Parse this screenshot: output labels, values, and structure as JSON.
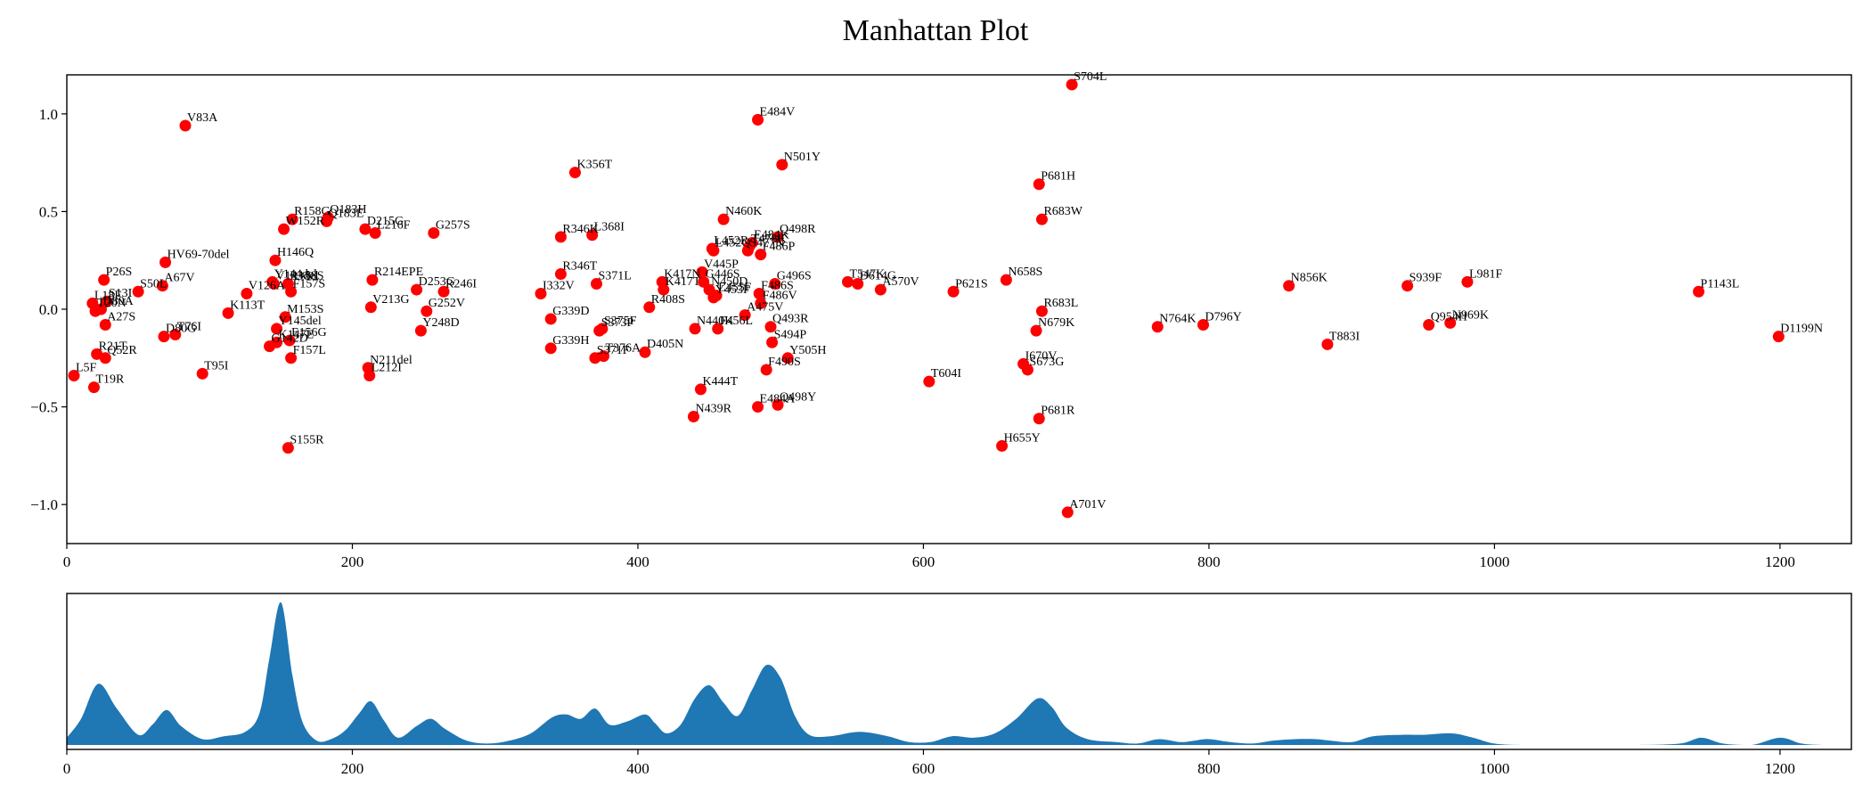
{
  "chart_data": [
    {
      "type": "scatter",
      "title": "Manhattan Plot",
      "xlabel": "",
      "ylabel": "",
      "xlim": [
        0,
        1250
      ],
      "ylim": [
        -1.2,
        1.2
      ],
      "xticks": [
        0,
        200,
        400,
        600,
        800,
        1000,
        1200
      ],
      "yticks": [
        -1.0,
        -0.5,
        0.0,
        0.5,
        1.0
      ],
      "grid": false,
      "color": "#ff0000",
      "points": [
        {
          "label": "L5F",
          "x": 5,
          "y": -0.34
        },
        {
          "label": "L18F",
          "x": 18,
          "y": 0.03
        },
        {
          "label": "T19R",
          "x": 19,
          "y": -0.4
        },
        {
          "label": "T20N",
          "x": 20,
          "y": -0.01
        },
        {
          "label": "P26S",
          "x": 26,
          "y": 0.15
        },
        {
          "label": "R21T",
          "x": 21,
          "y": -0.23
        },
        {
          "label": "D80A",
          "x": 24,
          "y": 0.0
        },
        {
          "label": "A27S",
          "x": 27,
          "y": -0.08
        },
        {
          "label": "S13I",
          "x": 28,
          "y": 0.04
        },
        {
          "label": "Q52R",
          "x": 27,
          "y": -0.25
        },
        {
          "label": "HV69-70del",
          "x": 69,
          "y": 0.24
        },
        {
          "label": "S50L",
          "x": 50,
          "y": 0.09
        },
        {
          "label": "A67V",
          "x": 67,
          "y": 0.12
        },
        {
          "label": "D80G",
          "x": 68,
          "y": -0.14
        },
        {
          "label": "T76I",
          "x": 76,
          "y": -0.13
        },
        {
          "label": "V83A",
          "x": 83,
          "y": 0.94
        },
        {
          "label": "T95I",
          "x": 95,
          "y": -0.33
        },
        {
          "label": "K113T",
          "x": 113,
          "y": -0.02
        },
        {
          "label": "V126A",
          "x": 126,
          "y": 0.08
        },
        {
          "label": "H146Q",
          "x": 146,
          "y": 0.25
        },
        {
          "label": "Y144del",
          "x": 144,
          "y": 0.14
        },
        {
          "label": "V143del",
          "x": 145,
          "y": 0.13
        },
        {
          "label": "G142D",
          "x": 142,
          "y": -0.19
        },
        {
          "label": "Y145del",
          "x": 147,
          "y": -0.1
        },
        {
          "label": "W152R",
          "x": 152,
          "y": 0.41
        },
        {
          "label": "R158G",
          "x": 158,
          "y": 0.46
        },
        {
          "label": "M153S",
          "x": 153,
          "y": -0.04
        },
        {
          "label": "K147E",
          "x": 147,
          "y": -0.17
        },
        {
          "label": "F157S",
          "x": 157,
          "y": 0.09
        },
        {
          "label": "R158S",
          "x": 155,
          "y": 0.13
        },
        {
          "label": "E156G",
          "x": 156,
          "y": -0.16
        },
        {
          "label": "F157L",
          "x": 157,
          "y": -0.25
        },
        {
          "label": "S155R",
          "x": 155,
          "y": -0.71
        },
        {
          "label": "Q183H",
          "x": 183,
          "y": 0.47
        },
        {
          "label": "Q183E",
          "x": 182,
          "y": 0.45
        },
        {
          "label": "D215G",
          "x": 209,
          "y": 0.41
        },
        {
          "label": "L216F",
          "x": 216,
          "y": 0.39
        },
        {
          "label": "V213G",
          "x": 213,
          "y": 0.01
        },
        {
          "label": "N211del",
          "x": 211,
          "y": -0.3
        },
        {
          "label": "L212I",
          "x": 212,
          "y": -0.34
        },
        {
          "label": "R214EPE",
          "x": 214,
          "y": 0.15
        },
        {
          "label": "D253G",
          "x": 245,
          "y": 0.1
        },
        {
          "label": "R246I",
          "x": 264,
          "y": 0.09
        },
        {
          "label": "G257S",
          "x": 257,
          "y": 0.39
        },
        {
          "label": "G252V",
          "x": 252,
          "y": -0.01
        },
        {
          "label": "Y248D",
          "x": 248,
          "y": -0.11
        },
        {
          "label": "I332V",
          "x": 332,
          "y": 0.08
        },
        {
          "label": "G339D",
          "x": 339,
          "y": -0.05
        },
        {
          "label": "G339H",
          "x": 339,
          "y": -0.2
        },
        {
          "label": "R346K",
          "x": 346,
          "y": 0.37
        },
        {
          "label": "R346T",
          "x": 346,
          "y": 0.18
        },
        {
          "label": "K356T",
          "x": 356,
          "y": 0.7
        },
        {
          "label": "L368I",
          "x": 368,
          "y": 0.38
        },
        {
          "label": "S371L",
          "x": 371,
          "y": 0.13
        },
        {
          "label": "S373P",
          "x": 373,
          "y": -0.11
        },
        {
          "label": "S375F",
          "x": 375,
          "y": -0.1
        },
        {
          "label": "S371F",
          "x": 370,
          "y": -0.25
        },
        {
          "label": "T376A",
          "x": 376,
          "y": -0.24
        },
        {
          "label": "D405N",
          "x": 405,
          "y": -0.22
        },
        {
          "label": "R408S",
          "x": 408,
          "y": 0.01
        },
        {
          "label": "K417N",
          "x": 417,
          "y": 0.14
        },
        {
          "label": "K417T",
          "x": 418,
          "y": 0.1
        },
        {
          "label": "N440K",
          "x": 440,
          "y": -0.1
        },
        {
          "label": "N439R",
          "x": 439,
          "y": -0.55
        },
        {
          "label": "K444T",
          "x": 444,
          "y": -0.41
        },
        {
          "label": "V445P",
          "x": 445,
          "y": 0.19
        },
        {
          "label": "G446S",
          "x": 446,
          "y": 0.14
        },
        {
          "label": "N450D",
          "x": 450,
          "y": 0.1
        },
        {
          "label": "L452R",
          "x": 452,
          "y": 0.31
        },
        {
          "label": "L452Q",
          "x": 453,
          "y": 0.3
        },
        {
          "label": "Y453F",
          "x": 453,
          "y": 0.06
        },
        {
          "label": "L455F",
          "x": 455,
          "y": 0.07
        },
        {
          "label": "F456L",
          "x": 456,
          "y": -0.1
        },
        {
          "label": "N460K",
          "x": 460,
          "y": 0.46
        },
        {
          "label": "A475V",
          "x": 475,
          "y": -0.03
        },
        {
          "label": "S477N",
          "x": 477,
          "y": 0.3
        },
        {
          "label": "T478K",
          "x": 478,
          "y": 0.32
        },
        {
          "label": "E484K",
          "x": 480,
          "y": 0.34
        },
        {
          "label": "F486V",
          "x": 486,
          "y": 0.03
        },
        {
          "label": "F486S",
          "x": 485,
          "y": 0.08
        },
        {
          "label": "F486P",
          "x": 486,
          "y": 0.28
        },
        {
          "label": "E484V",
          "x": 484,
          "y": 0.97
        },
        {
          "label": "E484A",
          "x": 484,
          "y": -0.5
        },
        {
          "label": "F490S",
          "x": 490,
          "y": -0.31
        },
        {
          "label": "Q493R",
          "x": 493,
          "y": -0.09
        },
        {
          "label": "S494P",
          "x": 494,
          "y": -0.17
        },
        {
          "label": "G496S",
          "x": 496,
          "y": 0.13
        },
        {
          "label": "Q498R",
          "x": 498,
          "y": 0.37
        },
        {
          "label": "Q498Y",
          "x": 498,
          "y": -0.49
        },
        {
          "label": "N501Y",
          "x": 501,
          "y": 0.74
        },
        {
          "label": "Y505H",
          "x": 505,
          "y": -0.25
        },
        {
          "label": "T547K",
          "x": 547,
          "y": 0.14
        },
        {
          "label": "D614G",
          "x": 554,
          "y": 0.13
        },
        {
          "label": "A570V",
          "x": 570,
          "y": 0.1
        },
        {
          "label": "T604I",
          "x": 604,
          "y": -0.37
        },
        {
          "label": "P621S",
          "x": 621,
          "y": 0.09
        },
        {
          "label": "H655Y",
          "x": 655,
          "y": -0.7
        },
        {
          "label": "N658S",
          "x": 658,
          "y": 0.15
        },
        {
          "label": "I670V",
          "x": 670,
          "y": -0.28
        },
        {
          "label": "S673G",
          "x": 673,
          "y": -0.31
        },
        {
          "label": "N679K",
          "x": 679,
          "y": -0.11
        },
        {
          "label": "P681H",
          "x": 681,
          "y": 0.64
        },
        {
          "label": "P681R",
          "x": 681,
          "y": -0.56
        },
        {
          "label": "R683W",
          "x": 683,
          "y": 0.46
        },
        {
          "label": "R683L",
          "x": 683,
          "y": -0.01
        },
        {
          "label": "A701V",
          "x": 701,
          "y": -1.04
        },
        {
          "label": "S704L",
          "x": 704,
          "y": 1.15
        },
        {
          "label": "N764K",
          "x": 764,
          "y": -0.09
        },
        {
          "label": "D796Y",
          "x": 796,
          "y": -0.08
        },
        {
          "label": "N856K",
          "x": 856,
          "y": 0.12
        },
        {
          "label": "T883I",
          "x": 883,
          "y": -0.18
        },
        {
          "label": "S939F",
          "x": 939,
          "y": 0.12
        },
        {
          "label": "Q954H",
          "x": 954,
          "y": -0.08
        },
        {
          "label": "N969K",
          "x": 969,
          "y": -0.07
        },
        {
          "label": "L981F",
          "x": 981,
          "y": 0.14
        },
        {
          "label": "P1143L",
          "x": 1143,
          "y": 0.09
        },
        {
          "label": "D1199N",
          "x": 1199,
          "y": -0.14
        }
      ]
    },
    {
      "type": "area",
      "title": "",
      "xlabel": "",
      "ylabel": "",
      "xlim": [
        0,
        1250
      ],
      "xticks": [
        0,
        200,
        400,
        600,
        800,
        1000,
        1200
      ],
      "yticks": [],
      "grid": false,
      "color": "#1f77b4",
      "x": [
        0,
        10,
        22,
        35,
        50,
        60,
        70,
        80,
        95,
        110,
        125,
        135,
        142,
        150,
        158,
        165,
        175,
        185,
        195,
        205,
        213,
        222,
        232,
        245,
        255,
        265,
        280,
        295,
        310,
        325,
        340,
        350,
        360,
        370,
        380,
        392,
        405,
        412,
        420,
        430,
        440,
        450,
        460,
        470,
        480,
        490,
        500,
        510,
        520,
        535,
        555,
        575,
        590,
        605,
        620,
        635,
        650,
        665,
        680,
        690,
        700,
        715,
        735,
        750,
        765,
        780,
        790,
        800,
        815,
        830,
        845,
        860,
        875,
        885,
        900,
        915,
        935,
        950,
        970,
        985,
        1000,
        1020,
        1060,
        1100,
        1130,
        1145,
        1160,
        1180,
        1200,
        1215,
        1230,
        1245
      ],
      "values": [
        5,
        18,
        42,
        25,
        7,
        14,
        24,
        13,
        4,
        6,
        9,
        22,
        60,
        98,
        48,
        16,
        3,
        4,
        10,
        22,
        30,
        17,
        5,
        13,
        18,
        11,
        3,
        1,
        3,
        8,
        19,
        21,
        18,
        25,
        14,
        16,
        21,
        15,
        8,
        14,
        32,
        41,
        29,
        20,
        38,
        55,
        46,
        20,
        7,
        6,
        9,
        6,
        2,
        2,
        6,
        5,
        8,
        18,
        32,
        26,
        12,
        4,
        2,
        1,
        4,
        2,
        3,
        4,
        2,
        1,
        3,
        4,
        4,
        3,
        2,
        6,
        7,
        7,
        8,
        5,
        1,
        0,
        0,
        0,
        1,
        5,
        1,
        0,
        5,
        1,
        0,
        0
      ]
    }
  ]
}
